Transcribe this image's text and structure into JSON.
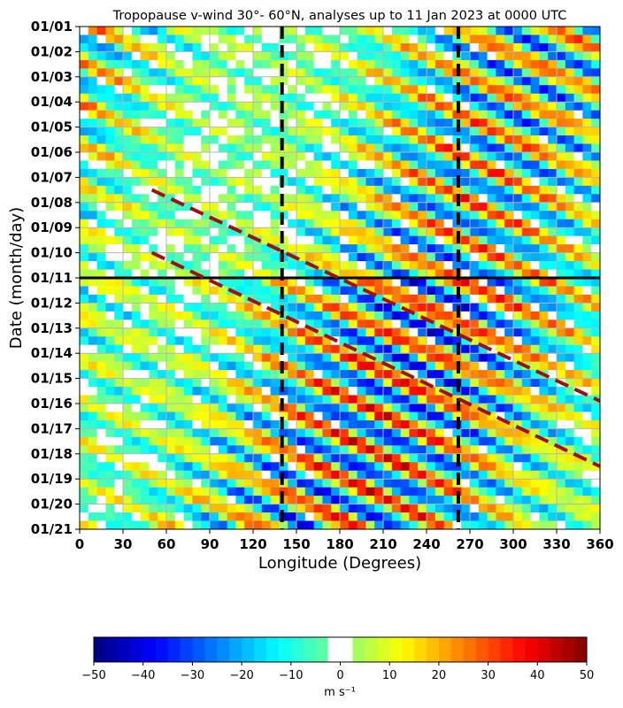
{
  "chart_data": {
    "type": "heatmap",
    "title": "Tropopause v-wind 30°- 60°N, analyses up to 11 Jan 2023 at 0000 UTC",
    "xlabel": "Longitude (Degrees)",
    "ylabel": "Date (month/day)",
    "xlim": [
      0,
      360
    ],
    "x_ticks": [
      0,
      30,
      60,
      90,
      120,
      150,
      180,
      210,
      240,
      270,
      300,
      330,
      360
    ],
    "y_ticks": [
      "01/01",
      "01/02",
      "01/03",
      "01/04",
      "01/05",
      "01/06",
      "01/07",
      "01/08",
      "01/09",
      "01/10",
      "01/11",
      "01/12",
      "01/13",
      "01/14",
      "01/15",
      "01/16",
      "01/17",
      "01/18",
      "01/19",
      "01/20",
      "01/21"
    ],
    "grid": true,
    "analysis_cutoff": "01/11",
    "vertical_reference_lines": [
      140,
      262
    ],
    "trend_lines": [
      {
        "from": {
          "lon": 50,
          "day": 6.5
        },
        "to": {
          "lon": 360,
          "day": 14.9
        }
      },
      {
        "from": {
          "lon": 50,
          "day": 9.0
        },
        "to": {
          "lon": 360,
          "day": 17.5
        }
      }
    ],
    "colorbar": {
      "label": "m s⁻¹",
      "ticks": [
        -50,
        -40,
        -30,
        -20,
        -10,
        0,
        10,
        20,
        30,
        40,
        50
      ],
      "range": [
        -50,
        50
      ],
      "blank_interval": [
        -2.5,
        2.5
      ],
      "colormap": "jet"
    },
    "colors": {
      "cutoff_line": "#000000",
      "reference_lines": "#000000",
      "trend_lines": "#a01010",
      "grid": "#b4b4b4"
    }
  }
}
